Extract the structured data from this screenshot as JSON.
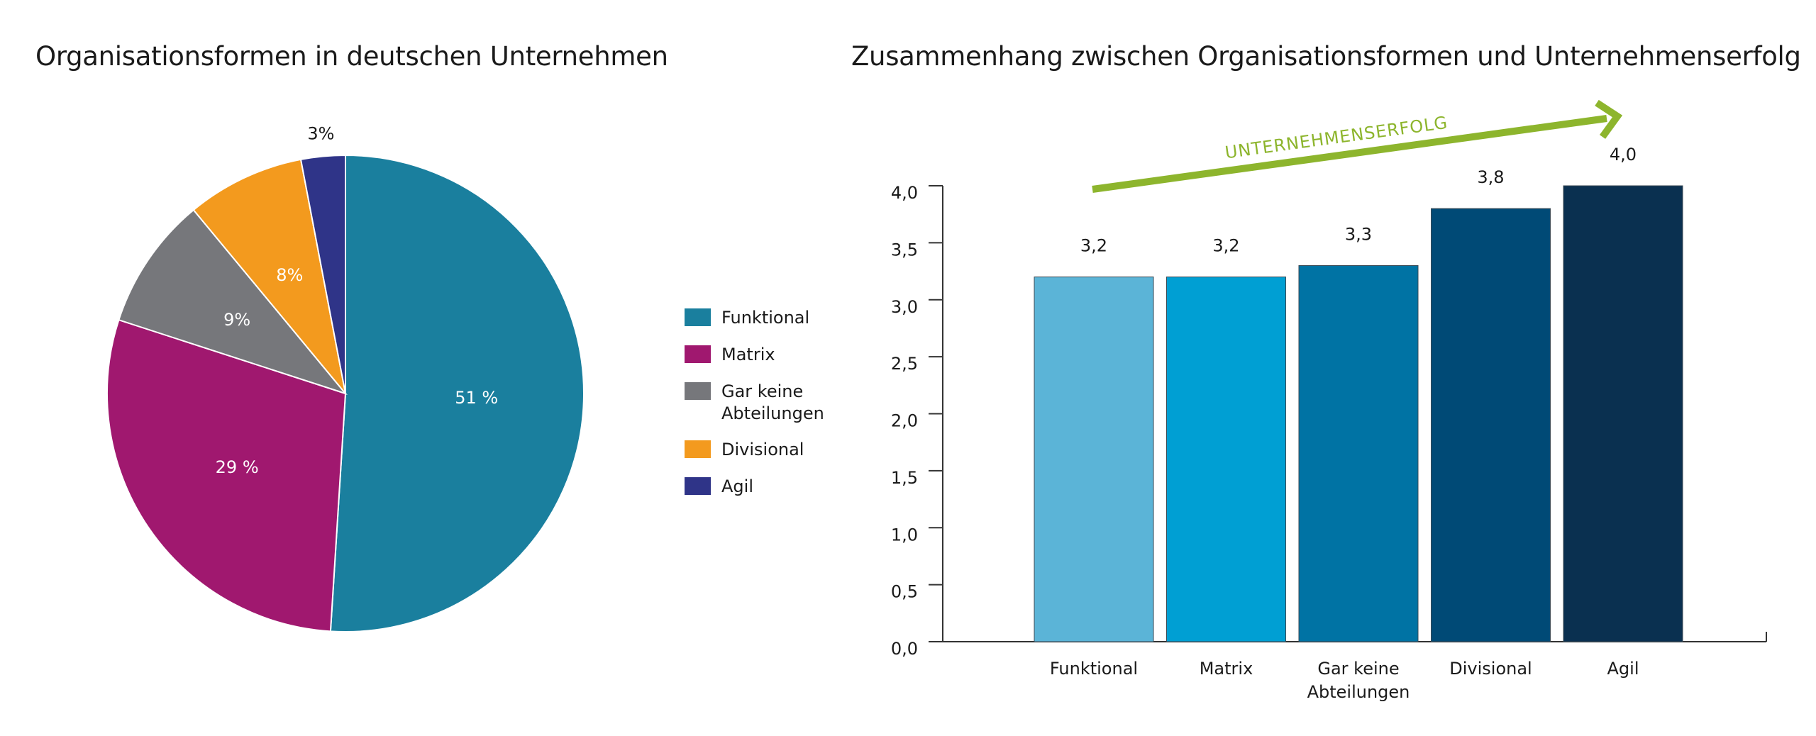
{
  "colors": {
    "funktional": "#1a7f9e",
    "matrix": "#a0186f",
    "keine": "#76777b",
    "divisional": "#f39a1e",
    "agil": "#2f3488",
    "arrow": "#8db52d",
    "text": "#1a1a1a",
    "bars": [
      "#5bb4d7",
      "#009fd3",
      "#0073a4",
      "#004a76",
      "#0a3050"
    ]
  },
  "chart_data": [
    {
      "type": "pie",
      "title": "Organisationsformen in deutschen Unternehmen",
      "slices": [
        {
          "label": "Funktional",
          "legend": [
            "Funktional"
          ],
          "value": 51,
          "text": "51 %",
          "color": "#1a7f9e",
          "text_color": "#ffffff"
        },
        {
          "label": "Matrix",
          "legend": [
            "Matrix"
          ],
          "value": 29,
          "text": "29 %",
          "color": "#a0186f",
          "text_color": "#ffffff"
        },
        {
          "label": "Gar keine Abteilungen",
          "legend": [
            "Gar keine",
            "Abteilungen"
          ],
          "value": 9,
          "text": "9%",
          "color": "#76777b",
          "text_color": "#ffffff"
        },
        {
          "label": "Divisional",
          "legend": [
            "Divisional"
          ],
          "value": 8,
          "text": "8%",
          "color": "#f39a1e",
          "text_color": "#ffffff"
        },
        {
          "label": "Agil",
          "legend": [
            "Agil"
          ],
          "value": 3,
          "text": "3%",
          "color": "#2f3488",
          "text_color": "#1a1a1a"
        }
      ],
      "legend_position": "right"
    },
    {
      "type": "bar",
      "title": "Zusammenhang zwischen Organisationsformen und Unternehmenserfolg",
      "categories": [
        [
          "Funktional"
        ],
        [
          "Matrix"
        ],
        [
          "Gar keine",
          "Abteilungen"
        ],
        [
          "Divisional"
        ],
        [
          "Agil"
        ]
      ],
      "values": [
        3.2,
        3.2,
        3.3,
        3.8,
        4.0
      ],
      "value_labels": [
        "3,2",
        "3,2",
        "3,3",
        "3,8",
        "4,0"
      ],
      "ylim": [
        0,
        4
      ],
      "yticks": [
        "0,0",
        "0,5",
        "1,0",
        "1,5",
        "2,0",
        "2,5",
        "3,0",
        "3,5",
        "4,0"
      ],
      "annotation": "UNTERNEHMENSERFOLG",
      "grid": false
    }
  ]
}
